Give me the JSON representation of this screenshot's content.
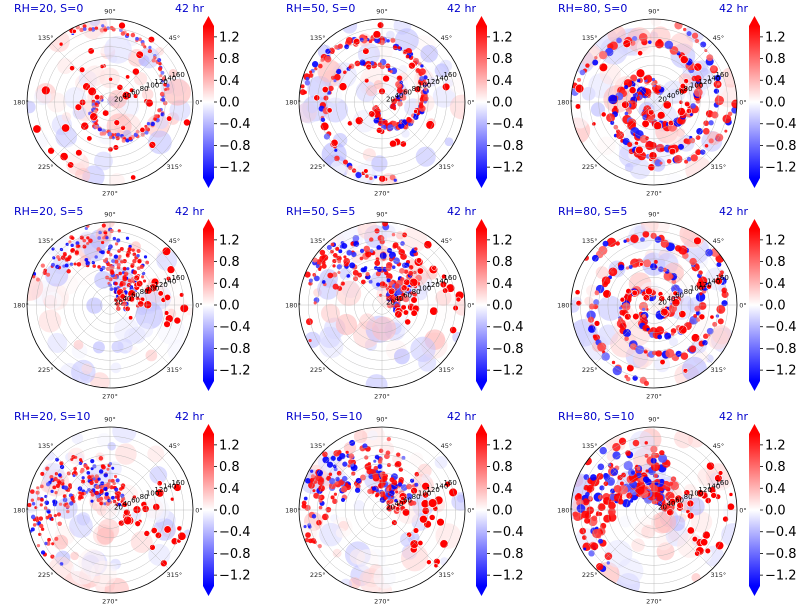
{
  "chart_data": [
    {
      "type": "heatmap",
      "projection": "polar",
      "title_left": "RH=20, S=0",
      "title_right": "42 hr",
      "rh": 20,
      "s": 0,
      "seed": 11,
      "mode": "scatter"
    },
    {
      "type": "heatmap",
      "projection": "polar",
      "title_left": "RH=50, S=0",
      "title_right": "42 hr",
      "rh": 50,
      "s": 0,
      "seed": 23,
      "mode": "spiral"
    },
    {
      "type": "heatmap",
      "projection": "polar",
      "title_left": "RH=80, S=0",
      "title_right": "42 hr",
      "rh": 80,
      "s": 0,
      "seed": 37,
      "mode": "spiral"
    },
    {
      "type": "heatmap",
      "projection": "polar",
      "title_left": "RH=20, S=5",
      "title_right": "42 hr",
      "rh": 20,
      "s": 5,
      "seed": 41,
      "mode": "sheared"
    },
    {
      "type": "heatmap",
      "projection": "polar",
      "title_left": "RH=50, S=5",
      "title_right": "42 hr",
      "rh": 50,
      "s": 5,
      "seed": 53,
      "mode": "sheared"
    },
    {
      "type": "heatmap",
      "projection": "polar",
      "title_left": "RH=80, S=5",
      "title_right": "42 hr",
      "rh": 80,
      "s": 5,
      "seed": 67,
      "mode": "spiral"
    },
    {
      "type": "heatmap",
      "projection": "polar",
      "title_left": "RH=20, S=10",
      "title_right": "42 hr",
      "rh": 20,
      "s": 10,
      "seed": 71,
      "mode": "sheared"
    },
    {
      "type": "heatmap",
      "projection": "polar",
      "title_left": "RH=50, S=10",
      "title_right": "42 hr",
      "rh": 50,
      "s": 10,
      "seed": 83,
      "mode": "sheared"
    },
    {
      "type": "heatmap",
      "projection": "polar",
      "title_left": "RH=80, S=10",
      "title_right": "42 hr",
      "rh": 80,
      "s": 10,
      "seed": 97,
      "mode": "sheared"
    }
  ],
  "polar_axes": {
    "theta_ticks": [
      "0°",
      "45°",
      "90°",
      "135°",
      "180°",
      "225°",
      "270°",
      "315°"
    ],
    "radial_ticks": [
      "20",
      "40",
      "60",
      "80",
      "100",
      "120",
      "140",
      "160"
    ],
    "rmax": 180
  },
  "colorbar": {
    "colormap": "bwr",
    "vmin": -1.4,
    "vmax": 1.4,
    "ticks": [
      "−1.2",
      "−0.8",
      "−0.4",
      "0.0",
      "0.4",
      "0.8",
      "1.2"
    ],
    "tick_values": [
      -1.2,
      -0.8,
      -0.4,
      0.0,
      0.4,
      0.8,
      1.2
    ],
    "extend": "both"
  }
}
